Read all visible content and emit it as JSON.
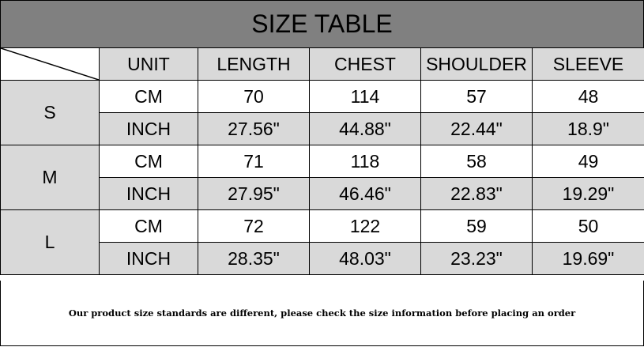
{
  "title": "SIZE TABLE",
  "headers": [
    "UNIT",
    "LENGTH",
    "CHEST",
    "SHOULDER",
    "SLEEVE"
  ],
  "sizes": [
    {
      "size": "S",
      "rows": [
        [
          "CM",
          "70",
          "114",
          "57",
          "48"
        ],
        [
          "INCH",
          "27.56\"",
          "44.88\"",
          "22.44\"",
          "18.9\""
        ]
      ]
    },
    {
      "size": "M",
      "rows": [
        [
          "CM",
          "71",
          "118",
          "58",
          "49"
        ],
        [
          "INCH",
          "27.95\"",
          "46.46\"",
          "22.83\"",
          "19.29\""
        ]
      ]
    },
    {
      "size": "L",
      "rows": [
        [
          "CM",
          "72",
          "122",
          "59",
          "50"
        ],
        [
          "INCH",
          "28.35\"",
          "48.03\"",
          "23.23\"",
          "19.69\""
        ]
      ]
    }
  ],
  "footer": "Our product size standards are different, please check the size information before placing an order",
  "colors": {
    "title_bg": "#808080",
    "shaded_cell": "#d9d9d9"
  }
}
